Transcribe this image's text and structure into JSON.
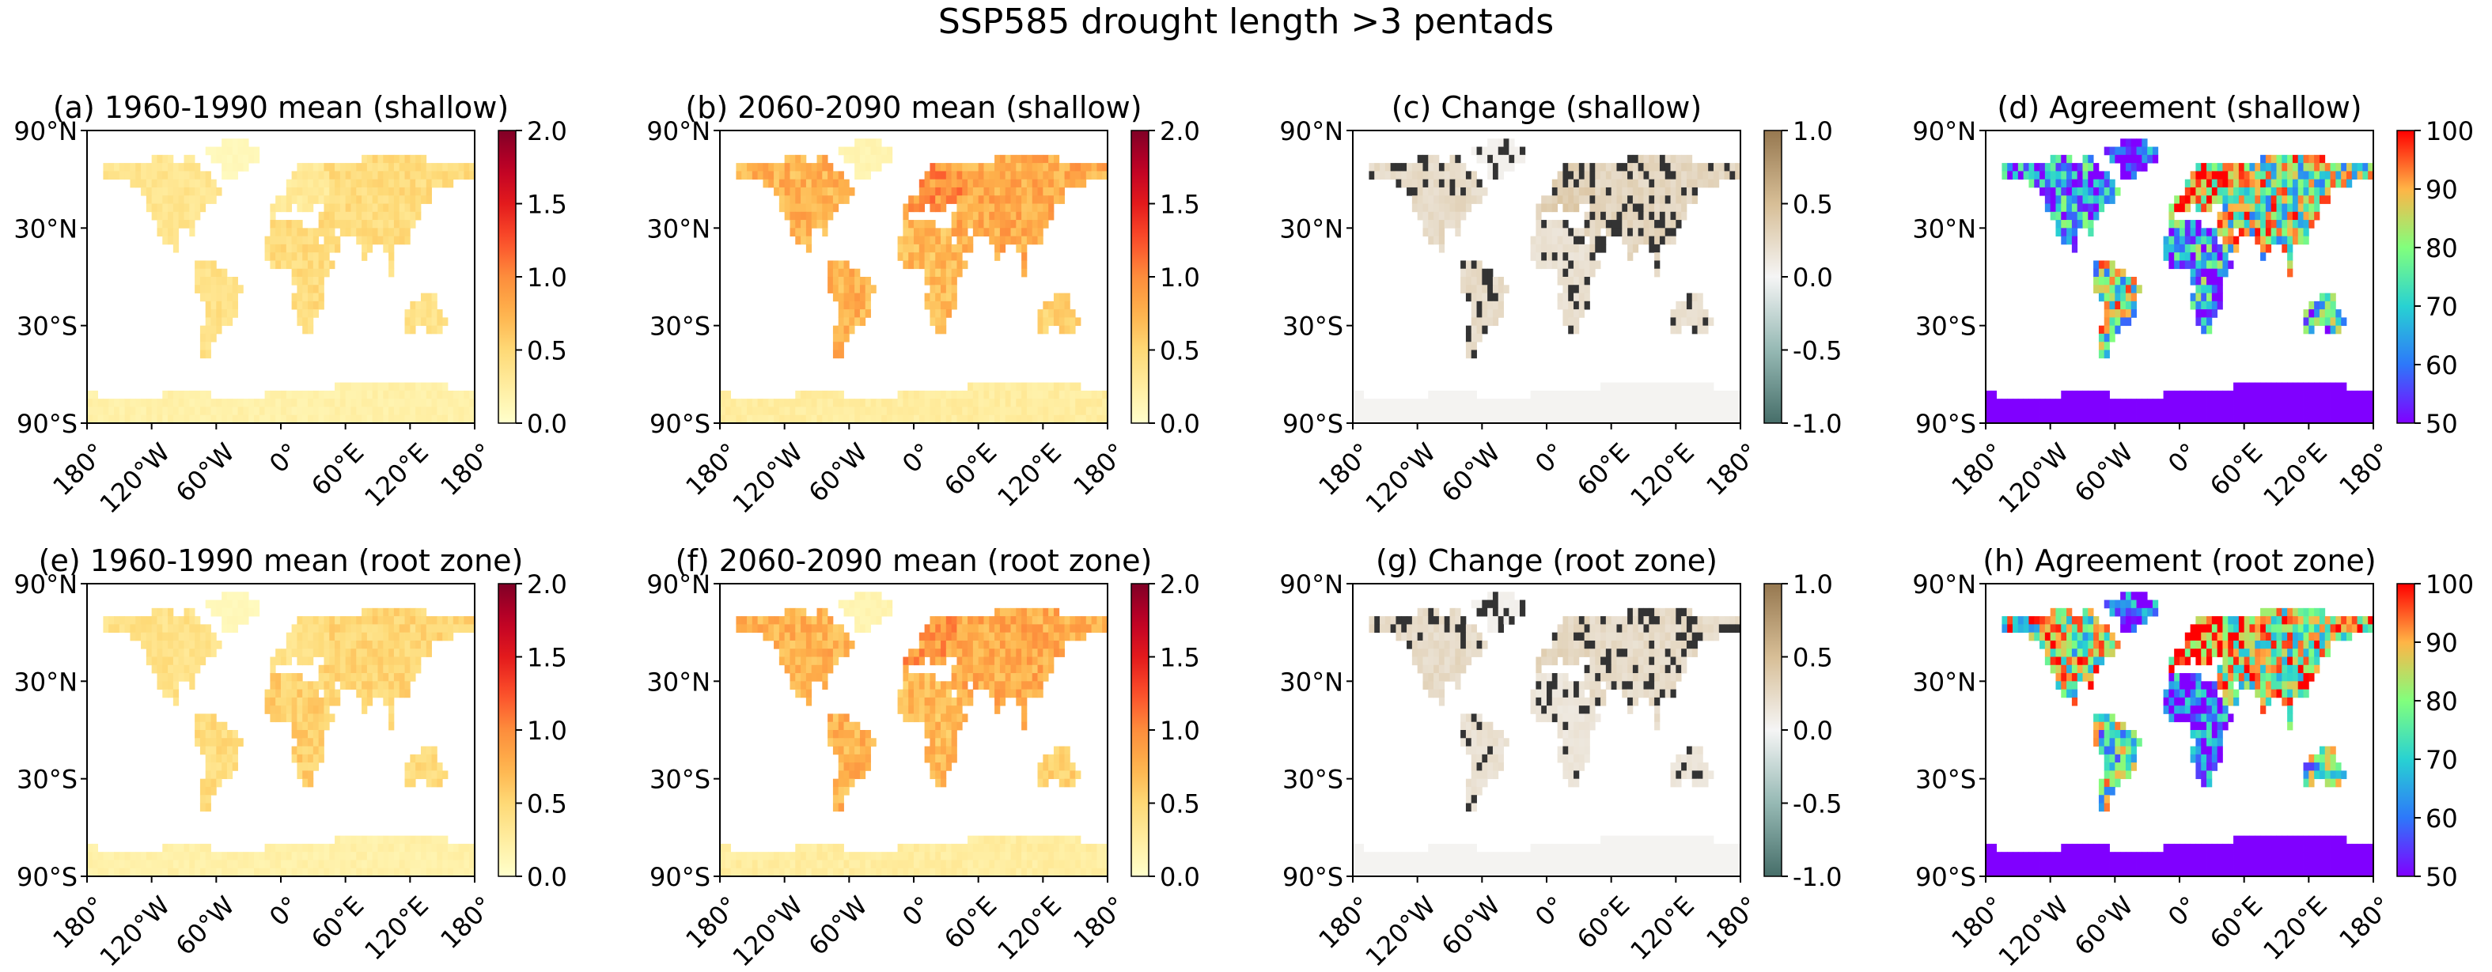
{
  "figure": {
    "title": "SSP585 drought length >3 pentads"
  },
  "axes": {
    "lon_ticks": [
      "180°",
      "120°W",
      "60°W",
      "0°",
      "60°E",
      "120°E",
      "180°"
    ],
    "lat_ticks": [
      "90°N",
      "30°N",
      "30°S",
      "90°S"
    ],
    "lon_values": [
      -180,
      -120,
      -60,
      0,
      60,
      120,
      180
    ],
    "lat_values": [
      90,
      30,
      -30,
      -90
    ]
  },
  "colorbars": {
    "mean": {
      "ticks": [
        "0.0",
        "0.5",
        "1.0",
        "1.5",
        "2.0"
      ],
      "range": [
        0,
        2
      ],
      "cmap": "YlOrRd"
    },
    "change": {
      "ticks": [
        "-1.0",
        "-0.5",
        "0.0",
        "0.5",
        "1.0"
      ],
      "range": [
        -1,
        1
      ],
      "cmap": "BrBG_r"
    },
    "agreement": {
      "ticks": [
        "50",
        "60",
        "70",
        "80",
        "90",
        "100"
      ],
      "range": [
        50,
        100
      ],
      "cmap": "rainbow"
    }
  },
  "colors": {
    "ocean": "#ffffff",
    "hatch": "#333333",
    "mean_low": "#ffffcc",
    "mean_high": "#800026",
    "change_neg": "#5f8f8a",
    "change_pos": "#a88b60",
    "agree_low": "#8000ff",
    "agree_high": "#ff0000"
  },
  "chart_data": [
    {
      "type": "heatmap",
      "title": "(a) 1960-1990 mean (shallow)",
      "variable": "mean",
      "layer": "shallow",
      "period": "1960-1990",
      "colorbar": "mean",
      "regions": {
        "north_america": 0.35,
        "south_america": 0.4,
        "europe": 0.3,
        "asia": 0.45,
        "africa": 0.45,
        "australia": 0.4,
        "antarctica": 0.2,
        "greenland": 0.1
      }
    },
    {
      "type": "heatmap",
      "title": "(b) 2060-2090 mean (shallow)",
      "variable": "mean",
      "layer": "shallow",
      "period": "2060-2090",
      "colorbar": "mean",
      "regions": {
        "north_america": 0.75,
        "south_america": 0.75,
        "europe": 0.95,
        "asia": 0.8,
        "africa": 0.7,
        "australia": 0.55,
        "antarctica": 0.25,
        "greenland": 0.15
      }
    },
    {
      "type": "heatmap",
      "title": "(c) Change (shallow)",
      "variable": "change",
      "layer": "shallow",
      "colorbar": "change",
      "regions": {
        "north_america": 0.25,
        "south_america": 0.25,
        "europe": 0.35,
        "asia": 0.3,
        "africa": 0.2,
        "australia": 0.2,
        "antarctica": 0.02,
        "greenland": 0.05
      }
    },
    {
      "type": "heatmap",
      "title": "(d) Agreement (shallow)",
      "variable": "agreement",
      "layer": "shallow",
      "colorbar": "agreement",
      "regions": {
        "north_america": 62,
        "south_america": 78,
        "europe": 92,
        "asia": 80,
        "africa": 65,
        "australia": 68,
        "antarctica": 50,
        "greenland": 52
      }
    },
    {
      "type": "heatmap",
      "title": "(e) 1960-1990 mean (root zone)",
      "variable": "mean",
      "layer": "root zone",
      "period": "1960-1990",
      "colorbar": "mean",
      "regions": {
        "north_america": 0.4,
        "south_america": 0.45,
        "europe": 0.4,
        "asia": 0.5,
        "africa": 0.55,
        "australia": 0.45,
        "antarctica": 0.2,
        "greenland": 0.1
      }
    },
    {
      "type": "heatmap",
      "title": "(f) 2060-2090 mean (root zone)",
      "variable": "mean",
      "layer": "root zone",
      "period": "2060-2090",
      "colorbar": "mean",
      "regions": {
        "north_america": 0.75,
        "south_america": 0.75,
        "europe": 0.9,
        "asia": 0.8,
        "africa": 0.7,
        "australia": 0.55,
        "antarctica": 0.25,
        "greenland": 0.15
      }
    },
    {
      "type": "heatmap",
      "title": "(g) Change (root zone)",
      "variable": "change",
      "layer": "root zone",
      "colorbar": "change",
      "regions": {
        "north_america": 0.25,
        "south_america": 0.2,
        "europe": 0.3,
        "asia": 0.25,
        "africa": 0.15,
        "australia": 0.15,
        "antarctica": 0.03,
        "greenland": 0.05
      }
    },
    {
      "type": "heatmap",
      "title": "(h) Agreement (root zone)",
      "variable": "agreement",
      "layer": "root zone",
      "colorbar": "agreement",
      "regions": {
        "north_america": 82,
        "south_america": 75,
        "europe": 95,
        "asia": 85,
        "africa": 55,
        "australia": 72,
        "antarctica": 50,
        "greenland": 52
      }
    }
  ]
}
